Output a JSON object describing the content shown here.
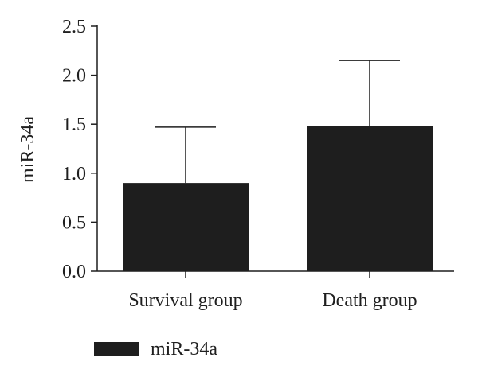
{
  "chart_data": {
    "type": "bar",
    "categories": [
      "Survival group",
      "Death group"
    ],
    "series": [
      {
        "name": "miR-34a",
        "values": [
          0.9,
          1.48
        ],
        "error_upper": [
          1.47,
          2.15
        ]
      }
    ],
    "xlabel": "",
    "ylabel": "miR-34a",
    "ylim": [
      0,
      2.5
    ],
    "yticks": [
      0.0,
      0.5,
      1.0,
      1.5,
      2.0,
      2.5
    ],
    "ytick_labels": [
      "0.0",
      "0.5",
      "1.0",
      "1.5",
      "2.0",
      "2.5"
    ],
    "grid": false,
    "legend_position": "bottom-left",
    "bar_color": "#1e1e1e"
  }
}
